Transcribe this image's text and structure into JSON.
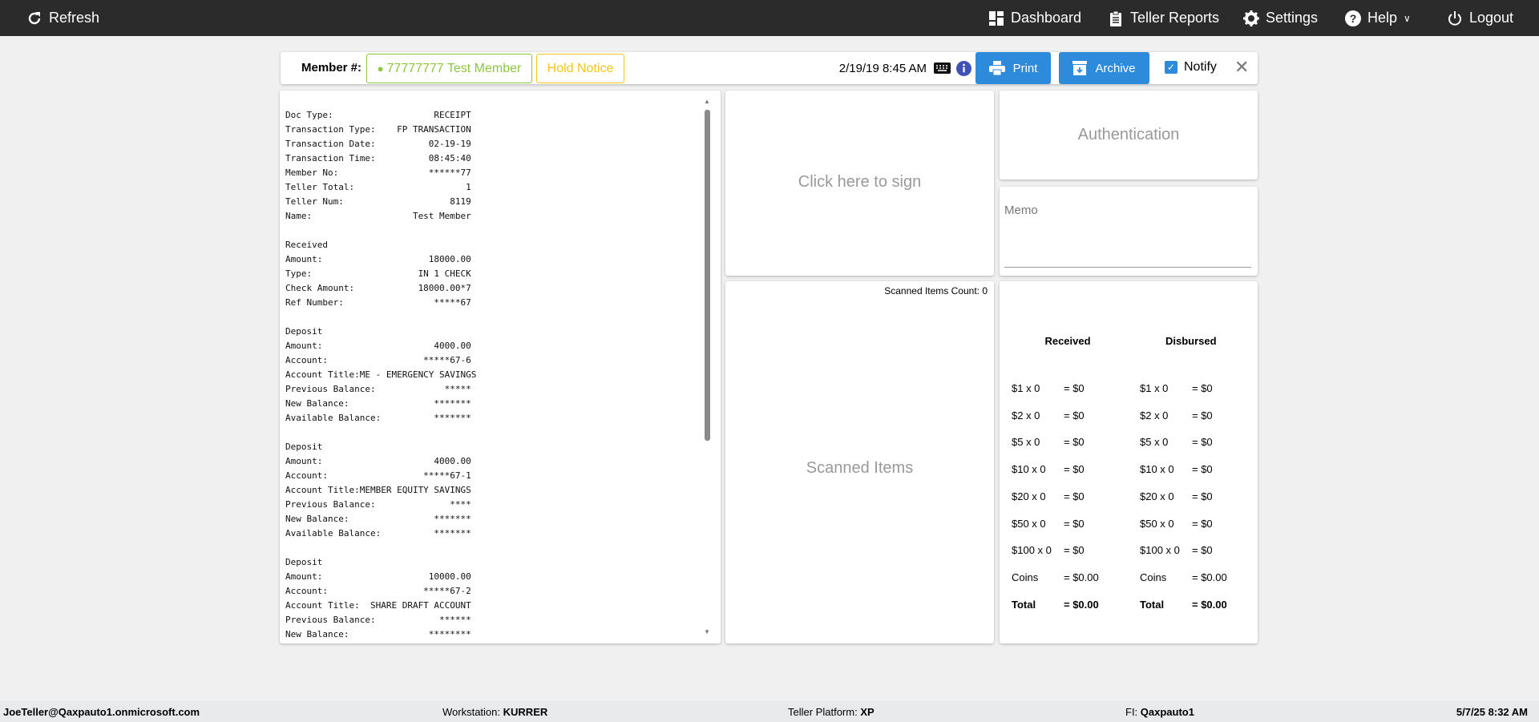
{
  "topbar": {
    "refresh": "Refresh",
    "dashboard": "Dashboard",
    "teller_reports": "Teller Reports",
    "settings": "Settings",
    "help": "Help",
    "logout": "Logout"
  },
  "header": {
    "member_label": "Member #:",
    "member_value": "77777777 Test Member",
    "hold_notice": "Hold Notice",
    "datetime": "2/19/19 8:45 AM",
    "print": "Print",
    "archive": "Archive",
    "notify": "Notify",
    "notify_checked": true
  },
  "receipt": {
    "lines": [
      [
        "Doc Type:",
        "RECEIPT"
      ],
      [
        "Transaction Type:",
        "FP TRANSACTION"
      ],
      [
        "Transaction Date:",
        "02-19-19"
      ],
      [
        "Transaction Time:",
        "08:45:40"
      ],
      [
        "Member No:",
        "******77"
      ],
      [
        "Teller Total:",
        "1"
      ],
      [
        "Teller Num:",
        "8119"
      ],
      [
        "Name:",
        "Test Member"
      ],
      [
        "",
        ""
      ],
      [
        "Received",
        ""
      ],
      [
        "Amount:",
        "18000.00"
      ],
      [
        "Type:",
        "IN 1 CHECK"
      ],
      [
        "Check Amount:",
        "18000.00*7"
      ],
      [
        "Ref Number:",
        "*****67"
      ],
      [
        "",
        ""
      ],
      [
        "Deposit",
        ""
      ],
      [
        "Amount:",
        "4000.00"
      ],
      [
        "Account:",
        "*****67-6"
      ],
      [
        "Account Title:ME - EMERGENCY SAVINGS",
        ""
      ],
      [
        "Previous Balance:",
        "*****"
      ],
      [
        "New Balance:",
        "*******"
      ],
      [
        "Available Balance:",
        "*******"
      ],
      [
        "",
        ""
      ],
      [
        "Deposit",
        ""
      ],
      [
        "Amount:",
        "4000.00"
      ],
      [
        "Account:",
        "*****67-1"
      ],
      [
        "Account Title:MEMBER EQUITY SAVINGS",
        ""
      ],
      [
        "Previous Balance:",
        "****"
      ],
      [
        "New Balance:",
        "*******"
      ],
      [
        "Available Balance:",
        "*******"
      ],
      [
        "",
        ""
      ],
      [
        "Deposit",
        ""
      ],
      [
        "Amount:",
        "10000.00"
      ],
      [
        "Account:",
        "*****67-2"
      ],
      [
        "Account Title:  SHARE DRAFT ACCOUNT",
        ""
      ],
      [
        "Previous Balance:",
        "******"
      ],
      [
        "New Balance:",
        "********"
      ]
    ]
  },
  "signature": {
    "prompt": "Click here to sign"
  },
  "scanned": {
    "count_label": "Scanned Items Count: 0",
    "title": "Scanned Items"
  },
  "authentication": {
    "title": "Authentication"
  },
  "memo": {
    "label": "Memo",
    "value": ""
  },
  "cash": {
    "received_header": "Received",
    "disbursed_header": "Disbursed",
    "received": [
      [
        "$1 x 0",
        "= $0"
      ],
      [
        "$2 x 0",
        "= $0"
      ],
      [
        "$5 x 0",
        "= $0"
      ],
      [
        "$10 x 0",
        "= $0"
      ],
      [
        "$20 x 0",
        "= $0"
      ],
      [
        "$50 x 0",
        "= $0"
      ],
      [
        "$100 x 0",
        "= $0"
      ],
      [
        "Coins",
        "= $0.00"
      ],
      [
        "Total",
        "= $0.00"
      ]
    ],
    "disbursed": [
      [
        "$1 x 0",
        "= $0"
      ],
      [
        "$2 x 0",
        "= $0"
      ],
      [
        "$5 x 0",
        "= $0"
      ],
      [
        "$10 x 0",
        "= $0"
      ],
      [
        "$20 x 0",
        "= $0"
      ],
      [
        "$50 x 0",
        "= $0"
      ],
      [
        "$100 x 0",
        "= $0"
      ],
      [
        "Coins",
        "= $0.00"
      ],
      [
        "Total",
        "= $0.00"
      ]
    ]
  },
  "footer": {
    "user": "JoeTeller@Qaxpauto1.onmicrosoft.com",
    "workstation_label": "Workstation:",
    "workstation": "KURRER",
    "platform_label": "Teller Platform:",
    "platform": "XP",
    "fi_label": "FI:",
    "fi": "Qaxpauto1",
    "datetime": "5/7/25 8:32 AM"
  },
  "colors": {
    "topbar": "#2b2b2b",
    "primary": "#2e8bdb",
    "member_green": "#8cc63f",
    "hold_yellow": "#f5c518",
    "info": "#3f51b5"
  }
}
